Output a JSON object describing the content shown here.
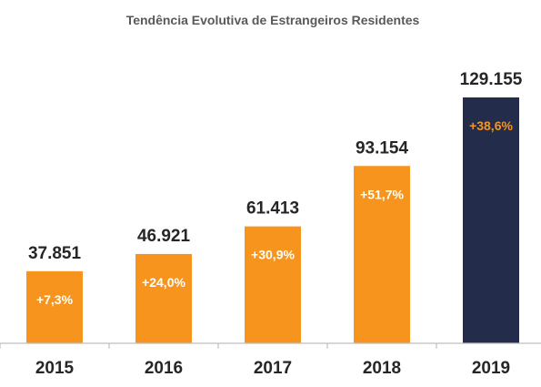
{
  "chart_data": {
    "type": "bar",
    "title": "Tendência Evolutiva de Estrangeiros Residentes",
    "categories": [
      "2015",
      "2016",
      "2017",
      "2018",
      "2019"
    ],
    "values": [
      37851,
      46921,
      61413,
      93154,
      129155
    ],
    "value_labels": [
      "37.851",
      "46.921",
      "61.413",
      "93.154",
      "129.155"
    ],
    "growth_labels": [
      "+7,3%",
      "+24,0%",
      "+30,9%",
      "+51,7%",
      "+38,6%"
    ],
    "bar_colors": [
      "#f7941d",
      "#f7941d",
      "#f7941d",
      "#f7941d",
      "#232d4b"
    ],
    "growth_label_colors": [
      "#ffffff",
      "#ffffff",
      "#ffffff",
      "#ffffff",
      "#f7941d"
    ],
    "ylim": [
      0,
      129155
    ],
    "grid": false,
    "legend": "none"
  }
}
